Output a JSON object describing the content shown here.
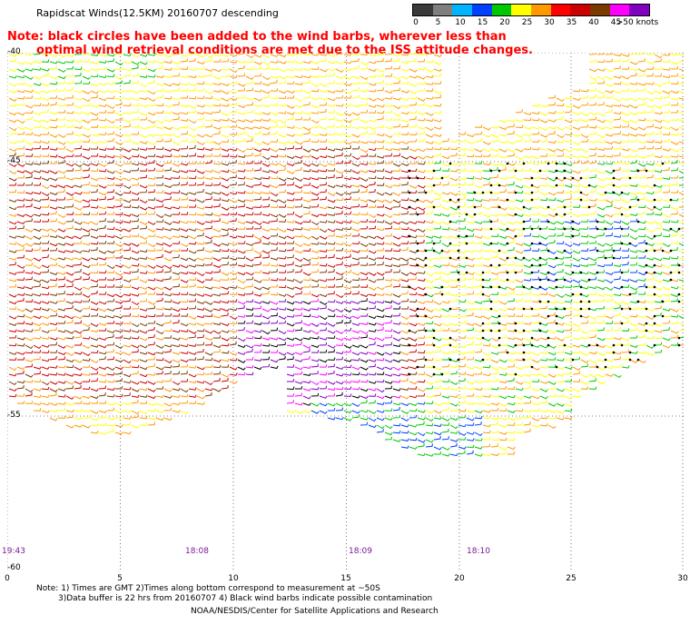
{
  "header": {
    "title": "Rapidscat Winds(12.5KM) 20160707 descending",
    "note_line1": "Note: black circles have been added to the wind barbs, wherever less than",
    "note_line2": "optimal wind retrieval conditions are met due to the ISS attitude changes."
  },
  "legend": {
    "labels": [
      "0",
      "5",
      "10",
      "15",
      "20",
      "25",
      "30",
      "35",
      "40",
      "45",
      ">50 knots"
    ],
    "colors": [
      "#3a3a3a",
      "#7f7f7f",
      "#00b4ff",
      "#0040ff",
      "#00c800",
      "#ffff00",
      "#ff9900",
      "#ff0000",
      "#cc0000",
      "#7a3b00",
      "#ff00ff",
      "#8000c0"
    ]
  },
  "map": {
    "lat_labels": [
      "-40",
      "-45",
      "-55",
      "-60"
    ],
    "lon_labels": [
      "0",
      "5",
      "10",
      "15",
      "20",
      "25",
      "30"
    ],
    "time_labels": [
      "19:43",
      "18:08",
      "18:09",
      "18:10"
    ]
  },
  "footer": {
    "line1": "Note: 1) Times are GMT 2)Times along bottom correspond to measurement at ~50S",
    "line2": "3)Data buffer is 22 hrs from 20160707 4) Black wind barbs indicate possible contamination",
    "line3": "NOAA/NESDIS/Center for Satellite Applications and Research"
  }
}
